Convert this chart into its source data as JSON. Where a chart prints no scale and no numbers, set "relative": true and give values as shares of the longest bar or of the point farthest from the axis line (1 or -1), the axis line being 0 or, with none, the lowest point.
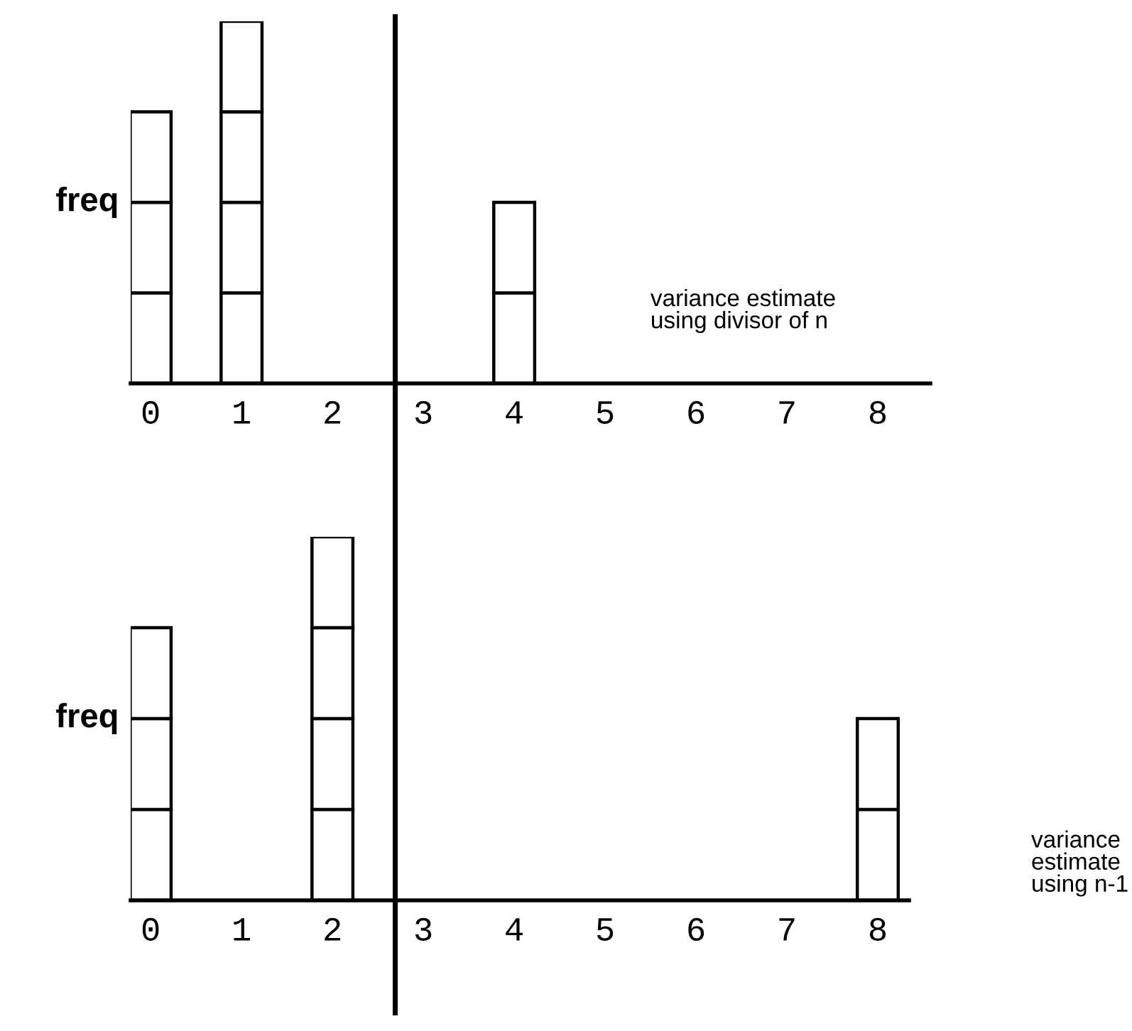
{
  "chart_data": [
    {
      "type": "bar",
      "stacked": true,
      "relative": true,
      "ylabel": "freq",
      "tick_labels": "x",
      "categories": [
        "0",
        "1",
        "2",
        "3",
        "4",
        "5",
        "6",
        "7",
        "8"
      ],
      "series": [
        {
          "color": "#ffffff",
          "values": [
            0.25,
            0.25,
            null,
            null,
            0.25,
            null,
            null,
            null,
            null
          ]
        },
        {
          "color": "#ffffff",
          "values": [
            0.25,
            0.25,
            null,
            null,
            0.25,
            null,
            null,
            null,
            null
          ]
        },
        {
          "color": "#ffffff",
          "values": [
            0.25,
            0.25,
            null,
            null,
            null,
            null,
            null,
            null,
            null
          ]
        },
        {
          "color": "#ffffff",
          "values": [
            null,
            0.25,
            null,
            null,
            null,
            null,
            null,
            null,
            null
          ]
        }
      ],
      "annotations": [
        "variance estimate\nusing divisor of n"
      ]
    },
    {
      "type": "bar",
      "stacked": true,
      "relative": true,
      "ylabel": "freq",
      "tick_labels": "x",
      "categories": [
        "0",
        "1",
        "2",
        "3",
        "4",
        "5",
        "6",
        "7",
        "8"
      ],
      "series": [
        {
          "color": "#ffffff",
          "values": [
            0.25,
            null,
            0.25,
            null,
            null,
            null,
            null,
            null,
            0.25
          ]
        },
        {
          "color": "#ffffff",
          "values": [
            0.25,
            null,
            0.25,
            null,
            null,
            null,
            null,
            null,
            0.25
          ]
        },
        {
          "color": "#ffffff",
          "values": [
            0.25,
            null,
            0.25,
            null,
            null,
            null,
            null,
            null,
            null
          ]
        },
        {
          "color": "#ffffff",
          "values": [
            null,
            null,
            0.25,
            null,
            null,
            null,
            null,
            null,
            null
          ]
        }
      ],
      "annotations": [
        "variance\nestimate\nusing n-1"
      ]
    }
  ]
}
